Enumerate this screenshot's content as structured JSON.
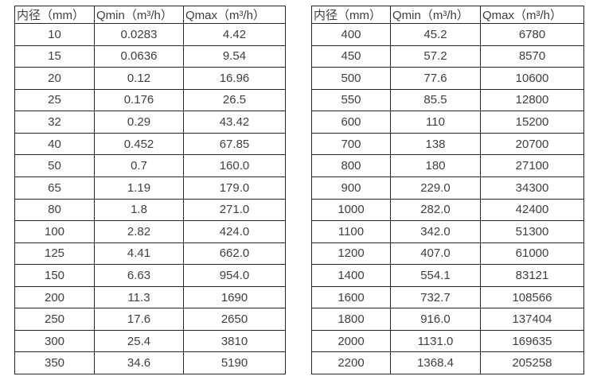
{
  "colors": {
    "text": "#3f3f3f",
    "border": "#262626",
    "background": "#ffffff"
  },
  "tables": [
    {
      "name": "flow-spec-table-small-diameters",
      "headers": [
        "内径（mm）",
        "Qmin（m³/h）",
        "Qmax（m³/h）"
      ],
      "rows": [
        [
          "10",
          "0.0283",
          "4.42"
        ],
        [
          "15",
          "0.0636",
          "9.54"
        ],
        [
          "20",
          "0.12",
          "16.96"
        ],
        [
          "25",
          "0.176",
          "26.5"
        ],
        [
          "32",
          "0.29",
          "43.42"
        ],
        [
          "40",
          "0.452",
          "67.85"
        ],
        [
          "50",
          "0.7",
          "160.0"
        ],
        [
          "65",
          "1.19",
          "179.0"
        ],
        [
          "80",
          "1.8",
          "271.0"
        ],
        [
          "100",
          "2.82",
          "424.0"
        ],
        [
          "125",
          "4.41",
          "662.0"
        ],
        [
          "150",
          "6.63",
          "954.0"
        ],
        [
          "200",
          "11.3",
          "1690"
        ],
        [
          "250",
          "17.6",
          "2650"
        ],
        [
          "300",
          "25.4",
          "3810"
        ],
        [
          "350",
          "34.6",
          "5190"
        ]
      ]
    },
    {
      "name": "flow-spec-table-large-diameters",
      "headers": [
        "内径（mm）",
        "Qmin（m³/h）",
        "Qmax（m³/h）"
      ],
      "rows": [
        [
          "400",
          "45.2",
          "6780"
        ],
        [
          "450",
          "57.2",
          "8570"
        ],
        [
          "500",
          "77.6",
          "10600"
        ],
        [
          "550",
          "85.5",
          "12800"
        ],
        [
          "600",
          "110",
          "15200"
        ],
        [
          "700",
          "138",
          "20700"
        ],
        [
          "800",
          "180",
          "27100"
        ],
        [
          "900",
          "229.0",
          "34300"
        ],
        [
          "1000",
          "282.0",
          "42400"
        ],
        [
          "1100",
          "342.0",
          "51300"
        ],
        [
          "1200",
          "407.0",
          "61000"
        ],
        [
          "1400",
          "554.1",
          "83121"
        ],
        [
          "1600",
          "732.7",
          "108566"
        ],
        [
          "1800",
          "916.0",
          "137404"
        ],
        [
          "2000",
          "1131.0",
          "169635"
        ],
        [
          "2200",
          "1368.4",
          "205258"
        ]
      ]
    }
  ]
}
